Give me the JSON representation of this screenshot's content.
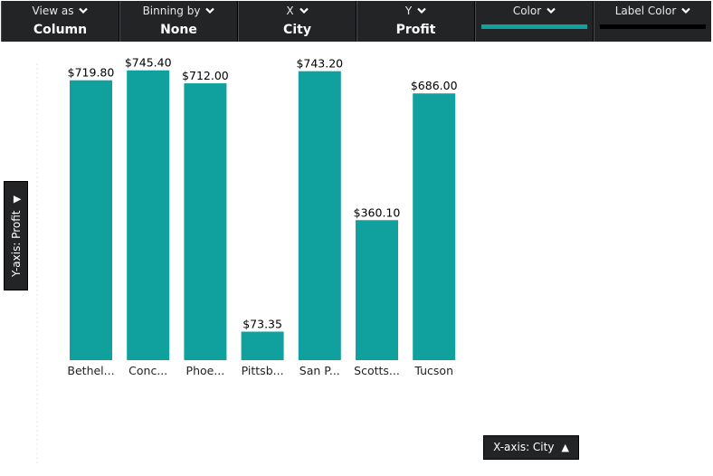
{
  "toolbar": {
    "view_as": {
      "label": "View as",
      "value": "Column"
    },
    "binning_by": {
      "label": "Binning by",
      "value": "None"
    },
    "x": {
      "label": "X",
      "value": "City"
    },
    "y": {
      "label": "Y",
      "value": "Profit"
    },
    "color": {
      "label": "Color",
      "swatch": "#10A19F"
    },
    "label_color": {
      "label": "Label Color",
      "swatch": "#000000"
    }
  },
  "y_axis_tag": "Y-axis: Profit",
  "x_axis_tag": "X-axis: City",
  "colors": {
    "bar": "#10A19F",
    "label": "#000000",
    "toolbar_bg": "#222426"
  },
  "chart_data": {
    "type": "bar",
    "categories": [
      "Bethel...",
      "Conc...",
      "Phoe...",
      "Pittsb...",
      "San P...",
      "Scotts...",
      "Tucson"
    ],
    "values": [
      719.8,
      745.4,
      712.0,
      73.35,
      743.2,
      360.1,
      686.0
    ],
    "data_labels": [
      "$719.80",
      "$745.40",
      "$712.00",
      "$73.35",
      "$743.20",
      "$360.10",
      "$686.00"
    ],
    "xlabel": "City",
    "ylabel": "Profit",
    "ylim": [
      0,
      768
    ],
    "grid": false
  }
}
